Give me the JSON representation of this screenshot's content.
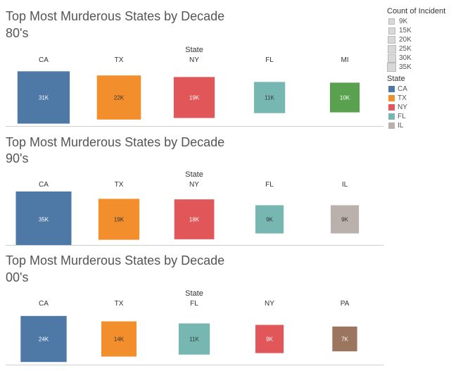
{
  "chart_data": [
    {
      "type": "square-marks",
      "title": "Top  Most Murderous States by Decade",
      "subtitle": "80's",
      "column_axis_title": "State",
      "categories": [
        "CA",
        "TX",
        "NY",
        "FL",
        "MI"
      ],
      "values": [
        31000,
        22000,
        19000,
        11000,
        10000
      ],
      "labels": [
        "31K",
        "22K",
        "19K",
        "11K",
        "10K"
      ],
      "colors": [
        "#4e79a7",
        "#f28e2b",
        "#e15759",
        "#76b7b2",
        "#59a14f"
      ]
    },
    {
      "type": "square-marks",
      "title": "Top  Most Murderous States by Decade",
      "subtitle": "90's",
      "column_axis_title": "State",
      "categories": [
        "CA",
        "TX",
        "NY",
        "FL",
        "IL"
      ],
      "values": [
        35000,
        19000,
        18000,
        9000,
        9000
      ],
      "labels": [
        "35K",
        "19K",
        "18K",
        "9K",
        "9K"
      ],
      "colors": [
        "#4e79a7",
        "#f28e2b",
        "#e15759",
        "#76b7b2",
        "#bab0ac"
      ]
    },
    {
      "type": "square-marks",
      "title": "Top  Most Murderous States by Decade",
      "subtitle": "00's",
      "column_axis_title": "State",
      "categories": [
        "CA",
        "TX",
        "FL",
        "NY",
        "PA"
      ],
      "values": [
        24000,
        14000,
        11000,
        9000,
        7000
      ],
      "labels": [
        "24K",
        "14K",
        "11K",
        "9K",
        "7K"
      ],
      "colors": [
        "#4e79a7",
        "#f28e2b",
        "#76b7b2",
        "#e15759",
        "#9c755f"
      ]
    }
  ],
  "legend": {
    "size_title": "Count of Incident",
    "size_items": [
      {
        "label": "9K",
        "value": 9000
      },
      {
        "label": "15K",
        "value": 15000
      },
      {
        "label": "20K",
        "value": 20000
      },
      {
        "label": "25K",
        "value": 25000
      },
      {
        "label": "30K",
        "value": 30000
      },
      {
        "label": "35K",
        "value": 35000
      }
    ],
    "color_title": "State",
    "color_items": [
      {
        "label": "CA",
        "color": "#4e79a7"
      },
      {
        "label": "TX",
        "color": "#f28e2b"
      },
      {
        "label": "NY",
        "color": "#e15759"
      },
      {
        "label": "FL",
        "color": "#76b7b2"
      },
      {
        "label": "IL",
        "color": "#bab0ac"
      }
    ]
  }
}
